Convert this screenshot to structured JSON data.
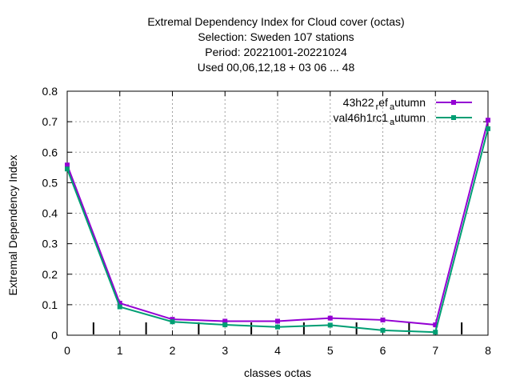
{
  "chart_data": {
    "type": "line",
    "title_lines": [
      "Extremal Dependency Index  for Cloud cover (octas)",
      "Selection: Sweden    107 stations",
      "Period: 20221001-20221024",
      "Used  00,06,12,18  + 03 06 ... 48"
    ],
    "xlabel": "classes octas",
    "ylabel": "Extremal Dependency Index",
    "xlim": [
      0,
      8
    ],
    "ylim": [
      0,
      0.8
    ],
    "xticks": [
      "0",
      "1",
      "2",
      "3",
      "4",
      "5",
      "6",
      "7",
      "8"
    ],
    "yticks": [
      "0",
      "0.1",
      "0.2",
      "0.3",
      "0.4",
      "0.5",
      "0.6",
      "0.7",
      "0.8"
    ],
    "grid": true,
    "legend_position": "top-right",
    "x": [
      0,
      1,
      2,
      3,
      4,
      5,
      6,
      7,
      8
    ],
    "series": [
      {
        "name": "43h22_ref_autumn",
        "legend_parts": [
          "43h22",
          "r",
          "ef",
          "a",
          "utumn"
        ],
        "color": "#9400d3",
        "values": [
          0.558,
          0.105,
          0.052,
          0.046,
          0.046,
          0.056,
          0.05,
          0.034,
          0.705
        ]
      },
      {
        "name": "val46h1rc1_autumn",
        "legend_parts": [
          "val46h1rc1",
          "a",
          "utumn"
        ],
        "color": "#009e73",
        "values": [
          0.545,
          0.093,
          0.044,
          0.034,
          0.027,
          0.033,
          0.016,
          0.01,
          0.677
        ]
      }
    ],
    "bottom_tick_marks_x": [
      0.5,
      1.5,
      2.5,
      3.5,
      4.5,
      5.5,
      6.5,
      7.5
    ]
  }
}
